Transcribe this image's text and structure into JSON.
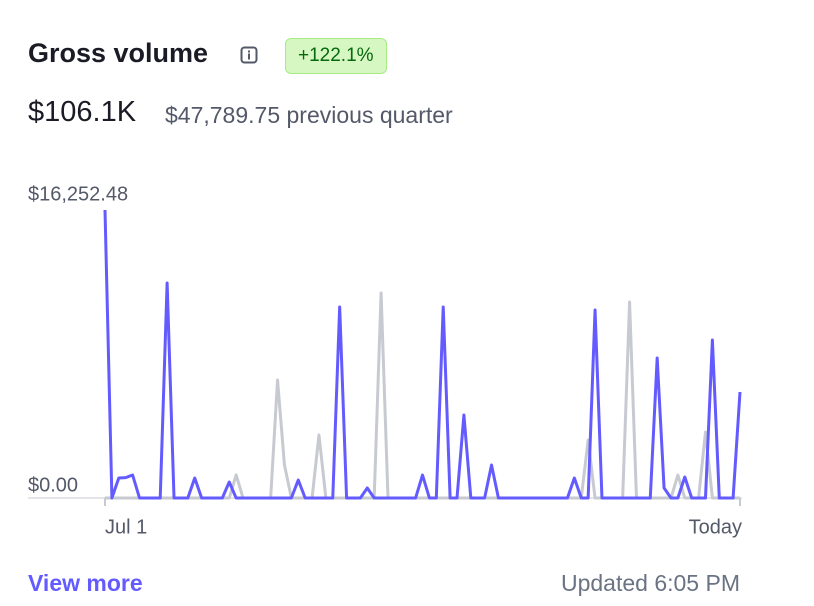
{
  "header": {
    "title": "Gross volume",
    "badge": "+122.1%",
    "value": "$106.1K",
    "comparison": "$47,789.75 previous quarter"
  },
  "footer": {
    "link": "View more",
    "updated": "Updated 6:05 PM"
  },
  "chart_data": {
    "type": "line",
    "categories": [
      "Jul 1",
      null,
      null,
      null,
      null,
      null,
      null,
      null,
      null,
      null,
      null,
      null,
      null,
      null,
      null,
      null,
      null,
      null,
      null,
      null,
      null,
      null,
      null,
      null,
      null,
      null,
      null,
      null,
      null,
      null,
      null,
      null,
      null,
      null,
      null,
      null,
      null,
      null,
      null,
      null,
      null,
      null,
      null,
      null,
      null,
      null,
      null,
      null,
      null,
      null,
      null,
      null,
      null,
      null,
      null,
      null,
      null,
      null,
      null,
      null,
      null,
      null,
      null,
      null,
      null,
      null,
      null,
      null,
      null,
      null,
      null,
      null,
      null,
      null,
      null,
      null,
      null,
      null,
      null,
      null,
      null,
      null,
      null,
      null,
      null,
      null,
      null,
      null,
      null,
      null,
      null,
      null,
      "Today"
    ],
    "series": [
      {
        "color": "#c7cad1",
        "values": [
          0,
          0,
          0,
          0,
          0,
          0,
          0,
          0,
          0,
          0,
          0,
          0,
          0,
          0,
          0,
          0,
          0,
          0,
          0,
          1300,
          0,
          0,
          0,
          0,
          0,
          6658,
          1862,
          0,
          0,
          0,
          0,
          3555,
          0,
          0,
          0,
          0,
          0,
          0,
          0,
          0,
          11568,
          0,
          0,
          0,
          0,
          0,
          0,
          0,
          0,
          0,
          0,
          0,
          0,
          0,
          0,
          0,
          0,
          0,
          0,
          0,
          0,
          0,
          0,
          0,
          0,
          0,
          0,
          0,
          0,
          0,
          3273,
          0,
          0,
          0,
          0,
          0,
          11060,
          0,
          0,
          0,
          0,
          0,
          0,
          1298,
          0,
          0,
          0,
          3724,
          0,
          0,
          0,
          0,
          0
        ]
      },
      {
        "color": "#635bff",
        "values": [
          16252.48,
          0,
          1129,
          1150,
          1298,
          0,
          0,
          0,
          0,
          12133,
          0,
          0,
          0,
          1129,
          0,
          0,
          0,
          0,
          903,
          0,
          0,
          0,
          0,
          0,
          0,
          0,
          0,
          0,
          1016,
          0,
          0,
          0,
          0,
          0,
          10778,
          0,
          0,
          0,
          564,
          0,
          0,
          0,
          0,
          0,
          0,
          0,
          1298,
          0,
          0,
          10778,
          0,
          0,
          4684,
          0,
          0,
          0,
          1862,
          0,
          0,
          0,
          0,
          0,
          0,
          0,
          0,
          0,
          0,
          0,
          1129,
          0,
          0,
          10609,
          0,
          0,
          0,
          0,
          0,
          0,
          0,
          0,
          7900,
          564,
          0,
          0,
          1185,
          0,
          0,
          0,
          8916,
          0,
          0,
          0,
          5982
        ]
      }
    ],
    "ylim": [
      0,
      16252.48
    ],
    "yticks": [
      {
        "value": 0,
        "label": "$0.00"
      },
      {
        "value": 16252.48,
        "label": "$16,252.48"
      }
    ]
  }
}
